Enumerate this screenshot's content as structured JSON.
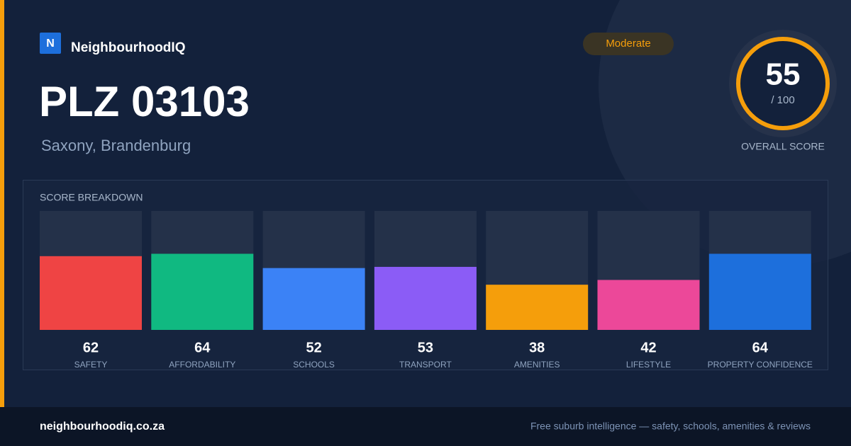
{
  "header": {
    "logo_letter": "N",
    "brand": "NeighbourhoodIQ",
    "title": "PLZ 03103",
    "subtitle": "Saxony, Brandenburg",
    "badge": "Moderate"
  },
  "overall": {
    "score": 55,
    "max": {
      "value": 100,
      "label": "/ 100"
    },
    "caption": "OVERALL SCORE"
  },
  "breakdown": {
    "title": "SCORE BREAKDOWN",
    "items": [
      {
        "label": "SAFETY",
        "value": 62,
        "color": "#ef4444"
      },
      {
        "label": "AFFORDABILITY",
        "value": 64,
        "color": "#10b981"
      },
      {
        "label": "SCHOOLS",
        "value": 52,
        "color": "#3b82f6"
      },
      {
        "label": "TRANSPORT",
        "value": 53,
        "color": "#8b5cf6"
      },
      {
        "label": "AMENITIES",
        "value": 38,
        "color": "#f59e0b"
      },
      {
        "label": "LIFESTYLE",
        "value": 42,
        "color": "#ec4899"
      },
      {
        "label": "PROPERTY CONFIDENCE",
        "value": 64,
        "color": "#1d6fdc"
      }
    ]
  },
  "footer": {
    "site": "neighbourhoodiq.co.za",
    "tagline": "Free suburb intelligence — safety, schools, amenities & reviews"
  }
}
